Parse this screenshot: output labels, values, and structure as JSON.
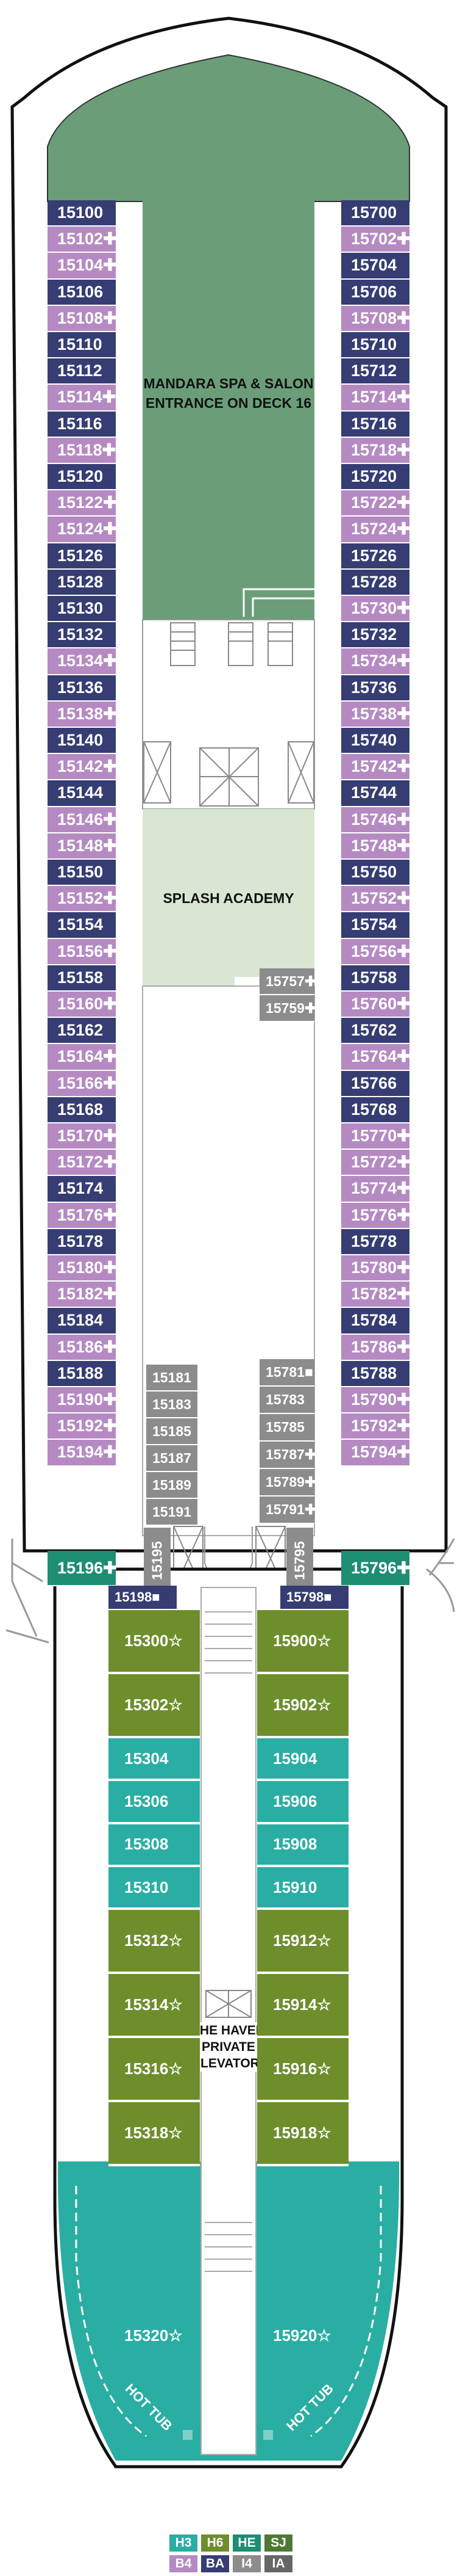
{
  "areas": {
    "spa": [
      "MANDARA SPA & SALON",
      "ENTRANCE ON DECK 16"
    ],
    "splash": "SPLASH ACADEMY",
    "elevators": [
      "THE HAVEN",
      "PRIVATE",
      "ELEVATORS"
    ],
    "hot_tub_left": "HOT TUB",
    "hot_tub_right": "HOT TUB"
  },
  "colors": {
    "BA": "#363d73",
    "B4": "#b58ac2",
    "I4": "#8c8c8c",
    "H6": "#6e8e2b",
    "H3": "#2aaea3",
    "HE": "#1d8e72",
    "SJ": "#4c7a33",
    "IA": "#666666",
    "spa": "#6b9e78",
    "splash": "#d8e6d2"
  },
  "cabins_left": [
    {
      "n": "15100",
      "cat": "BA"
    },
    {
      "n": "15102✚",
      "cat": "B4"
    },
    {
      "n": "15104✚",
      "cat": "B4"
    },
    {
      "n": "15106",
      "cat": "BA"
    },
    {
      "n": "15108✚",
      "cat": "B4"
    },
    {
      "n": "15110",
      "cat": "BA"
    },
    {
      "n": "15112",
      "cat": "BA"
    },
    {
      "n": "15114✚",
      "cat": "B4"
    },
    {
      "n": "15116",
      "cat": "BA"
    },
    {
      "n": "15118✚",
      "cat": "B4"
    },
    {
      "n": "15120",
      "cat": "BA"
    },
    {
      "n": "15122✚",
      "cat": "B4"
    },
    {
      "n": "15124✚",
      "cat": "B4"
    },
    {
      "n": "15126",
      "cat": "BA"
    },
    {
      "n": "15128",
      "cat": "BA"
    },
    {
      "n": "15130",
      "cat": "BA"
    },
    {
      "n": "15132",
      "cat": "BA"
    },
    {
      "n": "15134✚",
      "cat": "B4"
    },
    {
      "n": "15136",
      "cat": "BA"
    },
    {
      "n": "15138✚",
      "cat": "B4"
    },
    {
      "n": "15140",
      "cat": "BA"
    },
    {
      "n": "15142✚",
      "cat": "B4"
    },
    {
      "n": "15144",
      "cat": "BA"
    },
    {
      "n": "15146✚",
      "cat": "B4"
    },
    {
      "n": "15148✚",
      "cat": "B4"
    },
    {
      "n": "15150",
      "cat": "BA"
    },
    {
      "n": "15152✚",
      "cat": "B4"
    },
    {
      "n": "15154",
      "cat": "BA"
    },
    {
      "n": "15156✚",
      "cat": "B4"
    },
    {
      "n": "15158",
      "cat": "BA"
    },
    {
      "n": "15160✚",
      "cat": "B4"
    },
    {
      "n": "15162",
      "cat": "BA"
    },
    {
      "n": "15164✚",
      "cat": "B4"
    },
    {
      "n": "15166✚",
      "cat": "B4"
    },
    {
      "n": "15168",
      "cat": "BA"
    },
    {
      "n": "15170✚",
      "cat": "B4"
    },
    {
      "n": "15172✚",
      "cat": "B4"
    },
    {
      "n": "15174",
      "cat": "BA"
    },
    {
      "n": "15176✚",
      "cat": "B4"
    },
    {
      "n": "15178",
      "cat": "BA"
    },
    {
      "n": "15180✚",
      "cat": "B4"
    },
    {
      "n": "15182✚",
      "cat": "B4"
    },
    {
      "n": "15184",
      "cat": "BA"
    },
    {
      "n": "15186✚",
      "cat": "B4"
    },
    {
      "n": "15188",
      "cat": "BA"
    },
    {
      "n": "15190✚",
      "cat": "B4"
    },
    {
      "n": "15192✚",
      "cat": "B4"
    },
    {
      "n": "15194✚",
      "cat": "B4"
    }
  ],
  "cabins_right": [
    {
      "n": "15700",
      "cat": "BA"
    },
    {
      "n": "15702✚",
      "cat": "B4"
    },
    {
      "n": "15704",
      "cat": "BA"
    },
    {
      "n": "15706",
      "cat": "BA"
    },
    {
      "n": "15708✚",
      "cat": "B4"
    },
    {
      "n": "15710",
      "cat": "BA"
    },
    {
      "n": "15712",
      "cat": "BA"
    },
    {
      "n": "15714✚",
      "cat": "B4"
    },
    {
      "n": "15716",
      "cat": "BA"
    },
    {
      "n": "15718✚",
      "cat": "B4"
    },
    {
      "n": "15720",
      "cat": "BA"
    },
    {
      "n": "15722✚",
      "cat": "B4"
    },
    {
      "n": "15724✚",
      "cat": "B4"
    },
    {
      "n": "15726",
      "cat": "BA"
    },
    {
      "n": "15728",
      "cat": "BA"
    },
    {
      "n": "15730✚",
      "cat": "B4"
    },
    {
      "n": "15732",
      "cat": "BA"
    },
    {
      "n": "15734✚",
      "cat": "B4"
    },
    {
      "n": "15736",
      "cat": "BA"
    },
    {
      "n": "15738✚",
      "cat": "B4"
    },
    {
      "n": "15740",
      "cat": "BA"
    },
    {
      "n": "15742✚",
      "cat": "B4"
    },
    {
      "n": "15744",
      "cat": "BA"
    },
    {
      "n": "15746✚",
      "cat": "B4"
    },
    {
      "n": "15748✚",
      "cat": "B4"
    },
    {
      "n": "15750",
      "cat": "BA"
    },
    {
      "n": "15752✚",
      "cat": "B4"
    },
    {
      "n": "15754",
      "cat": "BA"
    },
    {
      "n": "15756✚",
      "cat": "B4"
    },
    {
      "n": "15758",
      "cat": "BA"
    },
    {
      "n": "15760✚",
      "cat": "B4"
    },
    {
      "n": "15762",
      "cat": "BA"
    },
    {
      "n": "15764✚",
      "cat": "B4"
    },
    {
      "n": "15766",
      "cat": "BA"
    },
    {
      "n": "15768",
      "cat": "BA"
    },
    {
      "n": "15770✚",
      "cat": "B4"
    },
    {
      "n": "15772✚",
      "cat": "B4"
    },
    {
      "n": "15774✚",
      "cat": "B4"
    },
    {
      "n": "15776✚",
      "cat": "B4"
    },
    {
      "n": "15778",
      "cat": "BA"
    },
    {
      "n": "15780✚",
      "cat": "B4"
    },
    {
      "n": "15782✚",
      "cat": "B4"
    },
    {
      "n": "15784",
      "cat": "BA"
    },
    {
      "n": "15786✚",
      "cat": "B4"
    },
    {
      "n": "15788",
      "cat": "BA"
    },
    {
      "n": "15790✚",
      "cat": "B4"
    },
    {
      "n": "15792✚",
      "cat": "B4"
    },
    {
      "n": "15794✚",
      "cat": "B4"
    }
  ],
  "cabins_mid_left": [
    {
      "n": "15181",
      "cat": "I4"
    },
    {
      "n": "15183",
      "cat": "I4"
    },
    {
      "n": "15185",
      "cat": "I4"
    },
    {
      "n": "15187",
      "cat": "I4"
    },
    {
      "n": "15189",
      "cat": "I4"
    },
    {
      "n": "15191",
      "cat": "I4"
    }
  ],
  "cabins_mid_right": [
    {
      "n": "15781■",
      "cat": "I4"
    },
    {
      "n": "15783",
      "cat": "I4"
    },
    {
      "n": "15785",
      "cat": "I4"
    },
    {
      "n": "15787✚",
      "cat": "I4"
    },
    {
      "n": "15789✚",
      "cat": "I4"
    },
    {
      "n": "15791✚",
      "cat": "I4"
    }
  ],
  "cabins_mid_upper": [
    {
      "n": "15757✚",
      "cat": "I4"
    },
    {
      "n": "15759✚",
      "cat": "I4"
    }
  ],
  "cabins_vertical": [
    {
      "n": "15195",
      "cat": "I4",
      "side": "left"
    },
    {
      "n": "15795",
      "cat": "I4",
      "side": "right"
    }
  ],
  "corner_cabins": [
    {
      "n": "15196✚",
      "cat": "HE",
      "side": "left"
    },
    {
      "n": "15796✚",
      "cat": "HE",
      "side": "right"
    }
  ],
  "haven_top": [
    {
      "n": "15198■",
      "cat": "BA",
      "side": "left"
    },
    {
      "n": "15798■",
      "cat": "BA",
      "side": "right"
    }
  ],
  "haven_left": [
    {
      "n": "15300☆",
      "cat": "H6",
      "rows": 1
    },
    {
      "n": "15302☆",
      "cat": "H6",
      "rows": 1
    },
    {
      "n": "15304",
      "cat": "H3",
      "rows": 0.67
    },
    {
      "n": "15306",
      "cat": "H3",
      "rows": 0.67
    },
    {
      "n": "15308",
      "cat": "H3",
      "rows": 0.67
    },
    {
      "n": "15310",
      "cat": "H3",
      "rows": 0.67
    },
    {
      "n": "15312☆",
      "cat": "H6",
      "rows": 1
    },
    {
      "n": "15314☆",
      "cat": "H6",
      "rows": 1
    },
    {
      "n": "15316☆",
      "cat": "H6",
      "rows": 1
    },
    {
      "n": "15318☆",
      "cat": "H6",
      "rows": 1
    }
  ],
  "haven_right": [
    {
      "n": "15900☆",
      "cat": "H6",
      "rows": 1
    },
    {
      "n": "15902☆",
      "cat": "H6",
      "rows": 1
    },
    {
      "n": "15904",
      "cat": "H3",
      "rows": 0.67
    },
    {
      "n": "15906",
      "cat": "H3",
      "rows": 0.67
    },
    {
      "n": "15908",
      "cat": "H3",
      "rows": 0.67
    },
    {
      "n": "15910",
      "cat": "H3",
      "rows": 0.67
    },
    {
      "n": "15912☆",
      "cat": "H6",
      "rows": 1
    },
    {
      "n": "15914☆",
      "cat": "H6",
      "rows": 1
    },
    {
      "n": "15916☆",
      "cat": "H6",
      "rows": 1
    },
    {
      "n": "15918☆",
      "cat": "H6",
      "rows": 1
    }
  ],
  "haven_aft": [
    {
      "n": "15320☆",
      "cat": "H3",
      "side": "left"
    },
    {
      "n": "15920☆",
      "cat": "H3",
      "side": "right"
    }
  ],
  "legend": [
    {
      "code": "H3",
      "color": "#2aaea3"
    },
    {
      "code": "H6",
      "color": "#6e8e2b"
    },
    {
      "code": "HE",
      "color": "#1d8e72"
    },
    {
      "code": "SJ",
      "color": "#4c7a33"
    },
    {
      "code": "B4",
      "color": "#b58ac2"
    },
    {
      "code": "BA",
      "color": "#363d73"
    },
    {
      "code": "I4",
      "color": "#8c8c8c"
    },
    {
      "code": "IA",
      "color": "#666666"
    }
  ]
}
